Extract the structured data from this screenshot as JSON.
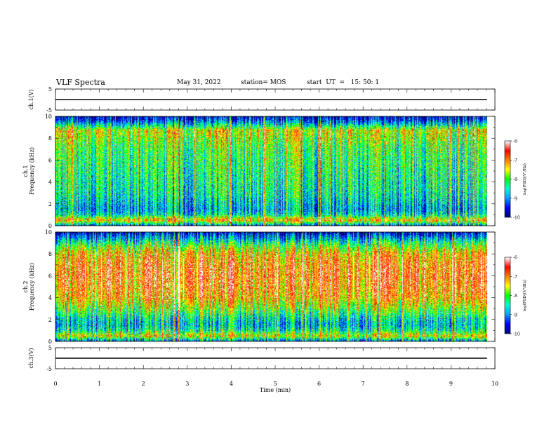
{
  "header": {
    "title": "VLF Spectra",
    "date": "May 31, 2022",
    "station": "station= MOS",
    "start": "start  UT  =   15: 50: 1"
  },
  "chart_data": [
    {
      "type": "line",
      "panel": "ch1_waveform",
      "ylabel": "ch.1(V)",
      "ylim": [
        -5,
        5
      ],
      "yticks": [
        "5",
        "-5"
      ],
      "xlim": [
        0,
        10
      ],
      "series": [
        {
          "x": [
            0,
            9.82
          ],
          "values": [
            0,
            0
          ]
        }
      ]
    },
    {
      "type": "heatmap",
      "panel": "ch1_spectrogram",
      "ylabel": "ch.1\nFrequency (kHz)",
      "ylim": [
        0,
        10
      ],
      "yticks": [
        "0",
        "2",
        "4",
        "6",
        "8",
        "10"
      ],
      "xlim": [
        0,
        10
      ],
      "data_end_min": 9.82,
      "colorbar": {
        "range": [
          -10,
          -6
        ],
        "ticks": [
          "-6",
          "-7",
          "-8",
          "-9",
          "-10"
        ],
        "label": "log(PSD)(V²/Hz)"
      },
      "profile_kHz": [
        0,
        0.5,
        1,
        1.5,
        2,
        3,
        4,
        5,
        6,
        7,
        8,
        8.7,
        9.2,
        9.6,
        10
      ],
      "profile_log_psd": [
        -9.2,
        -7.2,
        -8.6,
        -9.0,
        -8.8,
        -8.5,
        -8.4,
        -8.3,
        -8.2,
        -8.1,
        -7.8,
        -7.5,
        -8.6,
        -9.4,
        -9.8
      ]
    },
    {
      "type": "heatmap",
      "panel": "ch2_spectrogram",
      "ylabel": "ch.2\nFrequency (kHz)",
      "ylim": [
        0,
        10
      ],
      "yticks": [
        "0",
        "2",
        "4",
        "6",
        "8",
        "10"
      ],
      "xlim": [
        0,
        10
      ],
      "data_end_min": 9.82,
      "colorbar": {
        "range": [
          -10,
          -6
        ],
        "ticks": [
          "-6",
          "-7",
          "-8",
          "-9",
          "-10"
        ],
        "label": "log(PSD)(V²/Hz)"
      },
      "profile_kHz": [
        0,
        0.5,
        1,
        1.5,
        2,
        3,
        4,
        5,
        6,
        7,
        8,
        8.7,
        9.2,
        9.6,
        10
      ],
      "profile_log_psd": [
        -9.2,
        -7.4,
        -8.4,
        -8.8,
        -8.6,
        -7.8,
        -7.1,
        -6.9,
        -6.8,
        -6.9,
        -7.2,
        -7.9,
        -8.6,
        -9.2,
        -9.8
      ]
    },
    {
      "type": "line",
      "panel": "ch3_waveform",
      "ylabel": "ch.3(V)",
      "ylim": [
        -5,
        5
      ],
      "yticks": [
        "5",
        "-5"
      ],
      "xlim": [
        0,
        10
      ],
      "xlabel": "Time  (min)",
      "xticks": [
        "0",
        "1",
        "2",
        "3",
        "4",
        "5",
        "6",
        "7",
        "8",
        "9",
        "10"
      ],
      "series": [
        {
          "x": [
            0,
            9.82
          ],
          "values": [
            0,
            0
          ]
        }
      ]
    }
  ],
  "colors": {
    "scale": [
      "#000080",
      "#0000ff",
      "#00a0ff",
      "#00ffd0",
      "#00ff00",
      "#ffff00",
      "#ff8000",
      "#ff0000",
      "#ffffff"
    ]
  }
}
